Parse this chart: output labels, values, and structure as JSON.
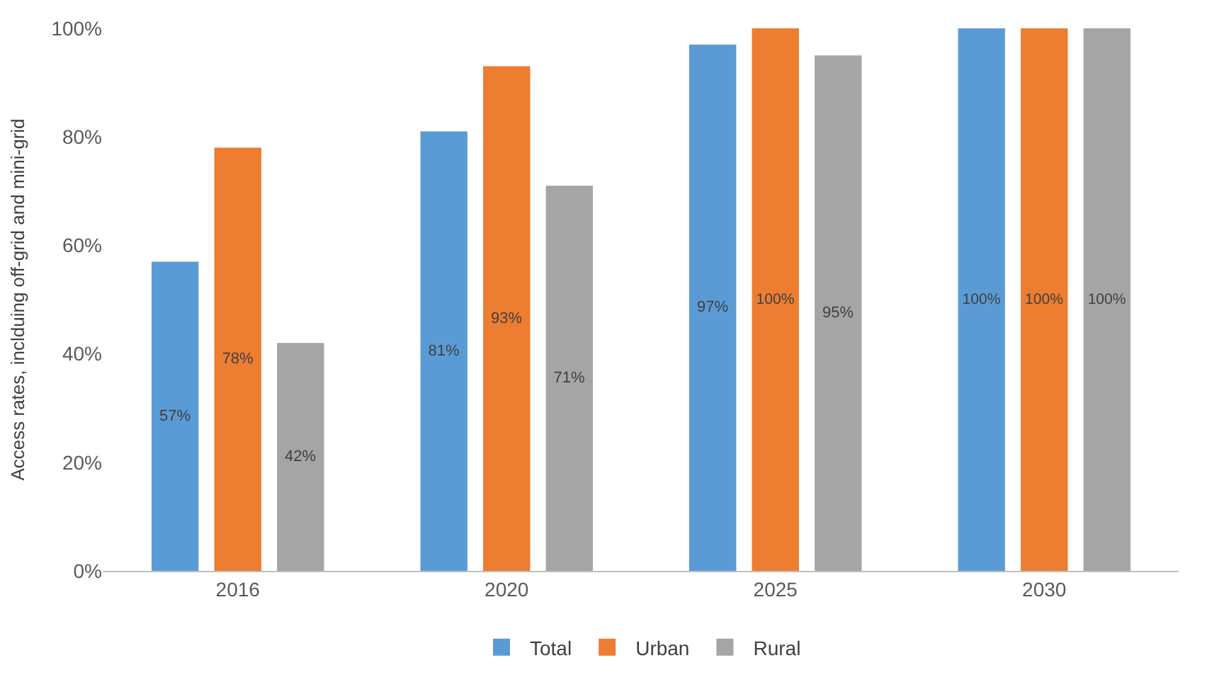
{
  "chart_data": {
    "type": "bar",
    "ylabel": "Access rates, inclduing off-grid and mini-grid",
    "categories": [
      "2016",
      "2020",
      "2025",
      "2030"
    ],
    "series": [
      {
        "name": "Total",
        "color": "#5b9bd5",
        "values": [
          57,
          81,
          97,
          100
        ],
        "value_labels": [
          "57%",
          "81%",
          "97%",
          "100%"
        ]
      },
      {
        "name": "Urban",
        "color": "#ed7d31",
        "values": [
          78,
          93,
          100,
          100
        ],
        "value_labels": [
          "78%",
          "93%",
          "100%",
          "100%"
        ]
      },
      {
        "name": "Rural",
        "color": "#a5a5a5",
        "values": [
          42,
          71,
          95,
          100
        ],
        "value_labels": [
          "42%",
          "71%",
          "95%",
          "100%"
        ]
      }
    ],
    "ylim": [
      0,
      100
    ],
    "yticks": [
      {
        "value": 0,
        "label": "0%"
      },
      {
        "value": 20,
        "label": "20%"
      },
      {
        "value": 40,
        "label": "40%"
      },
      {
        "value": 60,
        "label": "60%"
      },
      {
        "value": 80,
        "label": "80%"
      },
      {
        "value": 100,
        "label": "100%"
      }
    ],
    "grid": false,
    "legend": "bottom"
  }
}
